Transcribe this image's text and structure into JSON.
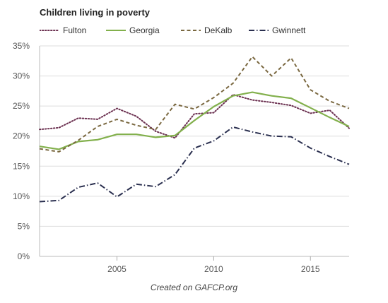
{
  "chart_data": {
    "type": "line",
    "title": "Children living in poverty",
    "caption": "Created on GAFCP.org",
    "xlabel": "",
    "ylabel": "",
    "xlim": [
      2001,
      2017
    ],
    "ylim": [
      0,
      35
    ],
    "x_ticks": [
      2005,
      2010,
      2015
    ],
    "y_ticks": [
      0,
      5,
      10,
      15,
      20,
      25,
      30,
      35
    ],
    "y_tick_labels": [
      "0%",
      "5%",
      "10%",
      "15%",
      "20%",
      "25%",
      "30%",
      "35%"
    ],
    "grid": "horizontal",
    "legend_position": "top",
    "x": [
      2001,
      2002,
      2003,
      2004,
      2005,
      2006,
      2007,
      2008,
      2009,
      2010,
      2011,
      2012,
      2013,
      2014,
      2015,
      2016,
      2017
    ],
    "series": [
      {
        "name": "Fulton",
        "color": "#6b3050",
        "dash": "dotted",
        "values": [
          21.1,
          21.4,
          23.0,
          22.8,
          24.6,
          23.3,
          20.8,
          19.7,
          23.7,
          23.9,
          26.9,
          26.0,
          25.6,
          25.1,
          23.8,
          24.3,
          21.3
        ]
      },
      {
        "name": "Georgia",
        "color": "#82b04c",
        "dash": "solid",
        "values": [
          18.3,
          17.8,
          19.1,
          19.4,
          20.3,
          20.3,
          19.8,
          20.1,
          22.6,
          24.9,
          26.7,
          27.3,
          26.7,
          26.3,
          24.7,
          23.1,
          21.6
        ]
      },
      {
        "name": "DeKalb",
        "color": "#7a6840",
        "dash": "dashed",
        "values": [
          17.9,
          17.4,
          19.3,
          21.6,
          22.8,
          21.8,
          21.1,
          25.3,
          24.5,
          26.4,
          28.8,
          33.2,
          30.0,
          33.0,
          27.7,
          25.8,
          24.6
        ]
      },
      {
        "name": "Gwinnett",
        "color": "#2a2f4f",
        "dash": "dashdot",
        "values": [
          9.1,
          9.3,
          11.5,
          12.2,
          9.9,
          12.0,
          11.6,
          13.6,
          18.0,
          19.2,
          21.5,
          20.7,
          20.0,
          19.9,
          18.0,
          16.6,
          15.3
        ]
      }
    ]
  }
}
